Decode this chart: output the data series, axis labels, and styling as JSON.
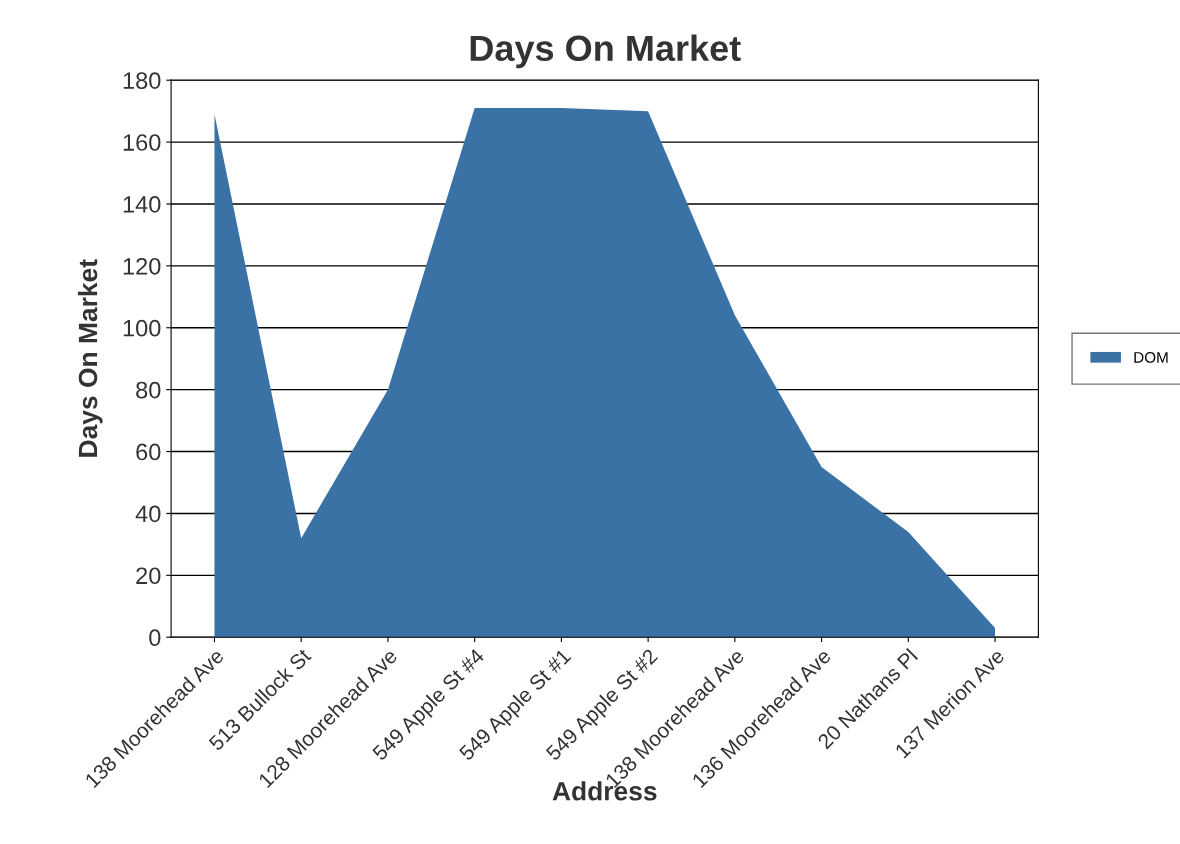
{
  "chart_data": {
    "type": "area",
    "title": "Days On Market",
    "xlabel": "Address",
    "ylabel": "Days On Market",
    "categories": [
      "138 Moorehead Ave",
      "513 Bullock St",
      "128 Moorehead Ave",
      "549 Apple St #4",
      "549 Apple St #1",
      "549 Apple St #2",
      "138 Moorehead Ave",
      "136 Moorehead Ave",
      "20 Nathans Pl",
      "137 Merion Ave"
    ],
    "series": [
      {
        "name": "DOM",
        "color": "#3a72a6",
        "values": [
          169,
          32,
          80,
          171,
          171,
          170,
          104,
          55,
          34,
          3
        ]
      }
    ],
    "ylim": [
      0,
      180
    ],
    "yticks": [
      0,
      20,
      40,
      60,
      80,
      100,
      120,
      140,
      160,
      180
    ],
    "grid": "y",
    "legend": "right"
  }
}
